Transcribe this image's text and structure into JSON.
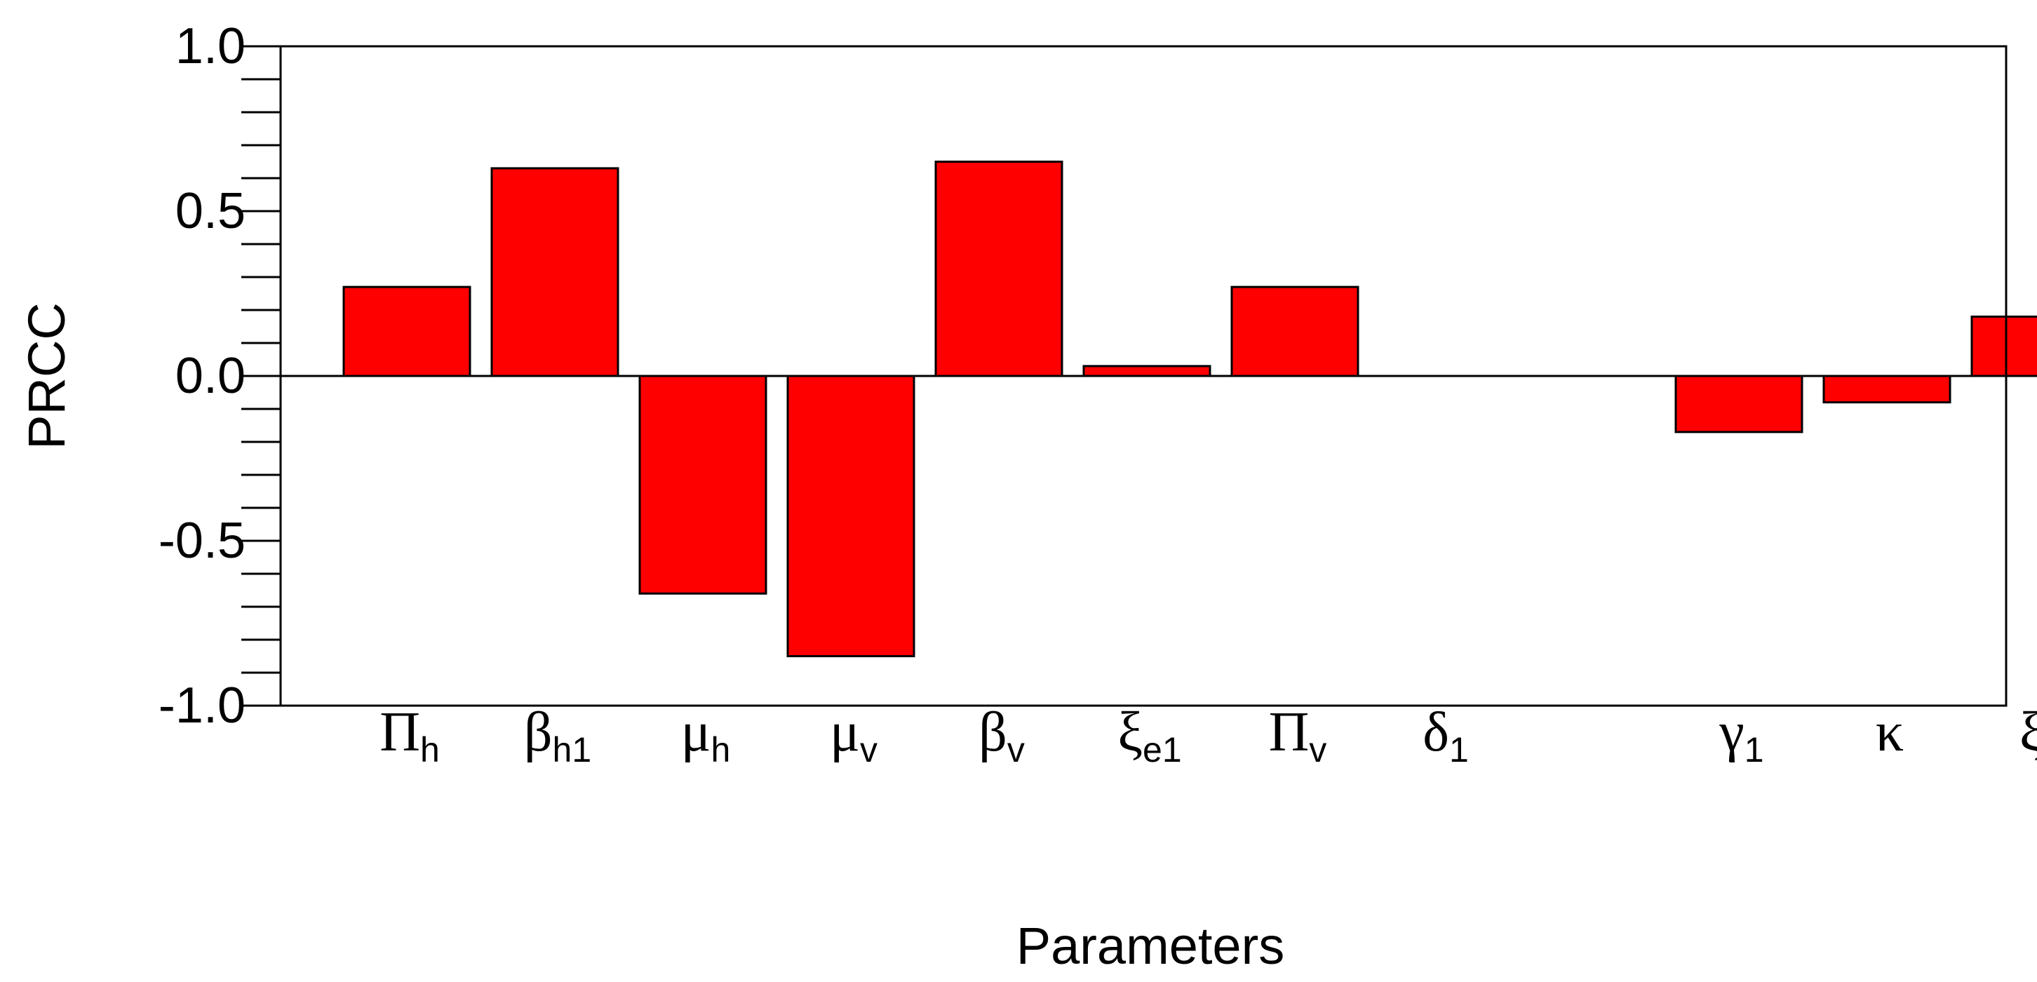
{
  "chart_data": {
    "type": "bar",
    "title": "",
    "xlabel": "Parameters",
    "ylabel": "PRCC",
    "ylim": [
      -1.0,
      1.0
    ],
    "yticks": [
      -1.0,
      -0.5,
      0.0,
      0.5,
      1.0
    ],
    "ytick_labels": [
      "-1.0",
      "-0.5",
      "0.0",
      "0.5",
      "1.0"
    ],
    "grid": false,
    "legend": "none",
    "bar_color": "#ff0000",
    "categories": [
      {
        "symbol": "Π",
        "sub": "h"
      },
      {
        "symbol": "β",
        "sub": "h1"
      },
      {
        "symbol": "μ",
        "sub": "h"
      },
      {
        "symbol": "μ",
        "sub": "v"
      },
      {
        "symbol": "β",
        "sub": "v"
      },
      {
        "symbol": "ξ",
        "sub": "e1"
      },
      {
        "symbol": "Π",
        "sub": "v"
      },
      {
        "symbol": "δ",
        "sub": "1"
      },
      {
        "symbol": "",
        "sub": ""
      },
      {
        "symbol": "γ",
        "sub": "1"
      },
      {
        "symbol": "κ",
        "sub": ""
      },
      {
        "symbol": "ξ",
        "sub": "r"
      }
    ],
    "values": [
      0.27,
      0.63,
      -0.66,
      -0.85,
      0.65,
      0.03,
      0.27,
      0.0,
      0.0,
      -0.17,
      -0.08,
      0.18
    ]
  }
}
